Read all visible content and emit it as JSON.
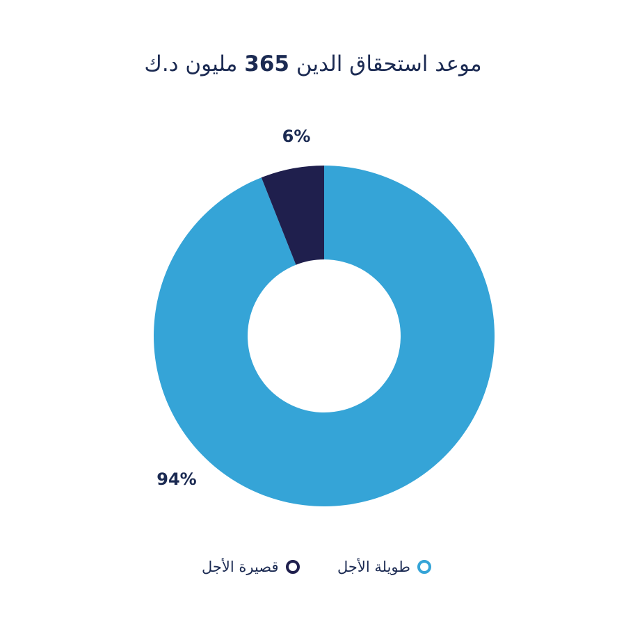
{
  "title": {
    "prefix": "موعد استحقاق الدين",
    "amount": "365",
    "suffix": "مليون د.ك"
  },
  "colors": {
    "long_term": "#35a4d7",
    "short_term": "#1f1f4d",
    "text": "#1b2a52"
  },
  "chart_data": {
    "type": "pie",
    "variant": "donut",
    "title": "موعد استحقاق الدين 365 مليون د.ك",
    "categories": [
      "طويلة الأجل",
      "قصيرة الأجل"
    ],
    "values": [
      94,
      6
    ],
    "labels": [
      "94%",
      "6%"
    ],
    "colors": [
      "#35a4d7",
      "#1f1f4d"
    ],
    "legend_position": "bottom"
  },
  "legend": {
    "items": [
      {
        "label": "طويلة الأجل",
        "color": "#35a4d7"
      },
      {
        "label": "قصيرة الأجل",
        "color": "#1f1f4d"
      }
    ]
  }
}
